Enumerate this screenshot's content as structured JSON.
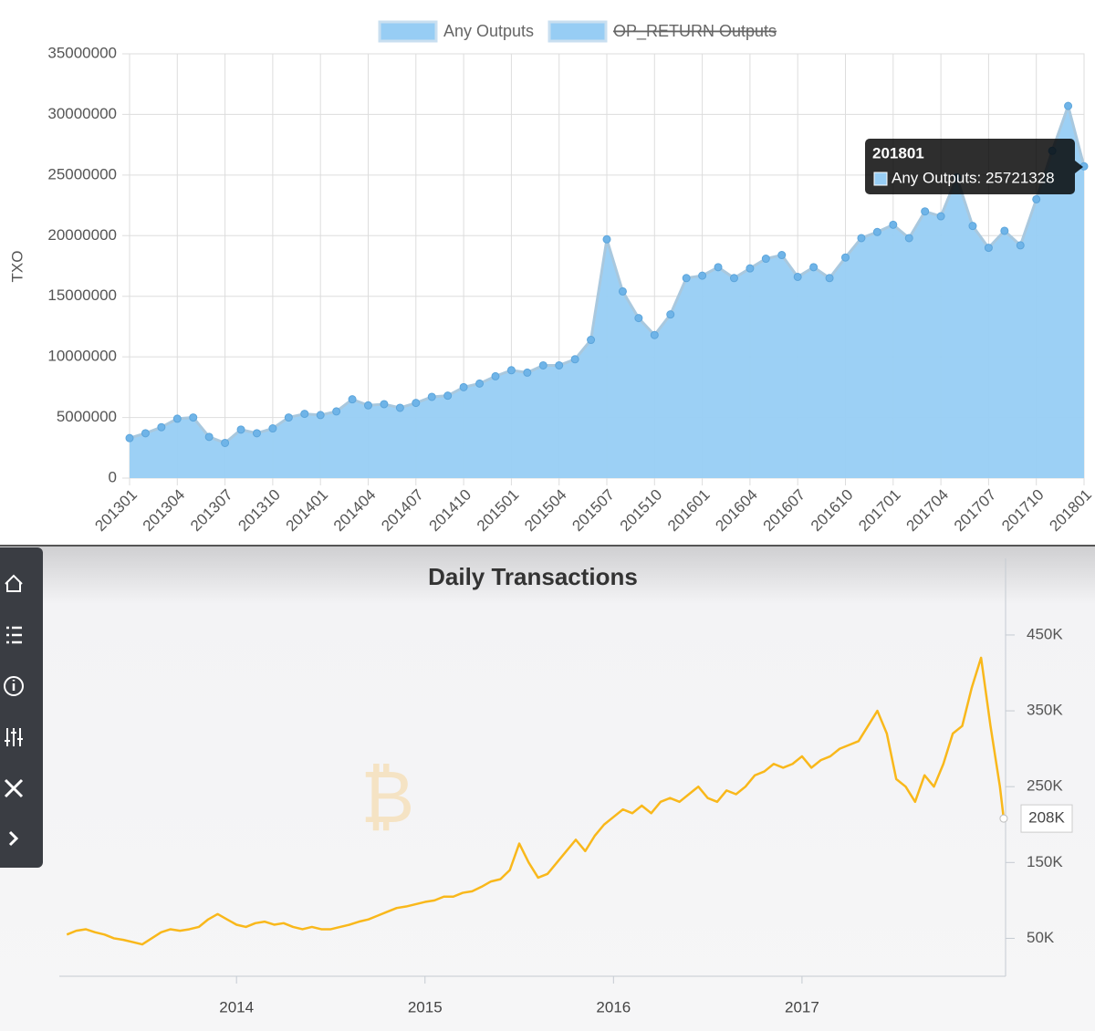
{
  "chart_data": [
    {
      "type": "area",
      "y_label": "TXO",
      "categories": [
        "201301",
        null,
        null,
        "201304",
        null,
        null,
        "201307",
        null,
        null,
        "201310",
        null,
        null,
        "201401",
        null,
        null,
        "201404",
        null,
        null,
        "201407",
        null,
        null,
        "201410",
        null,
        null,
        "201501",
        null,
        null,
        "201504",
        null,
        null,
        "201507",
        null,
        null,
        "201510",
        null,
        null,
        "201601",
        null,
        null,
        "201604",
        null,
        null,
        "201607",
        null,
        null,
        "201610",
        null,
        null,
        "201701",
        null,
        null,
        "201704",
        null,
        null,
        "201707",
        null,
        null,
        "201710",
        null,
        null,
        "201801"
      ],
      "series": [
        {
          "name": "Any Outputs",
          "color": "#97cdf4",
          "values": [
            3300000,
            3700000,
            4200000,
            4900000,
            5000000,
            3400000,
            2900000,
            4000000,
            3700000,
            4100000,
            5000000,
            5300000,
            5200000,
            5500000,
            6500000,
            6000000,
            6100000,
            5800000,
            6200000,
            6700000,
            6800000,
            7500000,
            7800000,
            8400000,
            8900000,
            8700000,
            9300000,
            9300000,
            9800000,
            11400000,
            19700000,
            15400000,
            13200000,
            11800000,
            13500000,
            16500000,
            16700000,
            17400000,
            16500000,
            17300000,
            18100000,
            18400000,
            16600000,
            17400000,
            16500000,
            18200000,
            19800000,
            20300000,
            20900000,
            19800000,
            22000000,
            21600000,
            24800000,
            20800000,
            19000000,
            20400000,
            19200000,
            23000000,
            27000000,
            30700000,
            25721328
          ]
        },
        {
          "name": "OP_RETURN Outputs",
          "color": "#97cdf4",
          "hidden": true
        }
      ],
      "ylim": [
        0,
        35000000
      ],
      "yticks": [
        0,
        5000000,
        10000000,
        15000000,
        20000000,
        25000000,
        30000000,
        35000000
      ],
      "grid": true,
      "tooltip": {
        "title": "201801",
        "label": "Any Outputs: 25721328"
      }
    },
    {
      "type": "line",
      "title": "Daily Transactions",
      "color": "#f9b81b",
      "x": [
        2013.1,
        2013.15,
        2013.2,
        2013.25,
        2013.3,
        2013.35,
        2013.4,
        2013.45,
        2013.5,
        2013.55,
        2013.6,
        2013.65,
        2013.7,
        2013.75,
        2013.8,
        2013.85,
        2013.9,
        2013.95,
        2014.0,
        2014.05,
        2014.1,
        2014.15,
        2014.2,
        2014.25,
        2014.3,
        2014.35,
        2014.4,
        2014.45,
        2014.5,
        2014.55,
        2014.6,
        2014.65,
        2014.7,
        2014.75,
        2014.8,
        2014.85,
        2014.9,
        2014.95,
        2015.0,
        2015.05,
        2015.1,
        2015.15,
        2015.2,
        2015.25,
        2015.3,
        2015.35,
        2015.4,
        2015.45,
        2015.5,
        2015.55,
        2015.6,
        2015.65,
        2015.7,
        2015.75,
        2015.8,
        2015.85,
        2015.9,
        2015.95,
        2016.0,
        2016.05,
        2016.1,
        2016.15,
        2016.2,
        2016.25,
        2016.3,
        2016.35,
        2016.4,
        2016.45,
        2016.5,
        2016.55,
        2016.6,
        2016.65,
        2016.7,
        2016.75,
        2016.8,
        2016.85,
        2016.9,
        2016.95,
        2017.0,
        2017.05,
        2017.1,
        2017.15,
        2017.2,
        2017.25,
        2017.3,
        2017.35,
        2017.4,
        2017.45,
        2017.5,
        2017.55,
        2017.6,
        2017.65,
        2017.7,
        2017.75,
        2017.8,
        2017.85,
        2017.9,
        2017.95,
        2018.0,
        2018.05,
        2018.07
      ],
      "values": [
        55000,
        60000,
        62000,
        58000,
        55000,
        50000,
        48000,
        45000,
        42000,
        50000,
        58000,
        62000,
        60000,
        62000,
        65000,
        75000,
        82000,
        75000,
        68000,
        65000,
        70000,
        72000,
        68000,
        70000,
        65000,
        62000,
        65000,
        62000,
        62000,
        65000,
        68000,
        72000,
        75000,
        80000,
        85000,
        90000,
        92000,
        95000,
        98000,
        100000,
        105000,
        105000,
        110000,
        112000,
        118000,
        125000,
        128000,
        140000,
        175000,
        150000,
        130000,
        135000,
        150000,
        165000,
        180000,
        165000,
        185000,
        200000,
        210000,
        220000,
        215000,
        225000,
        215000,
        230000,
        235000,
        230000,
        240000,
        250000,
        235000,
        230000,
        245000,
        240000,
        250000,
        265000,
        270000,
        280000,
        275000,
        280000,
        290000,
        275000,
        285000,
        290000,
        300000,
        305000,
        310000,
        330000,
        350000,
        320000,
        260000,
        250000,
        230000,
        265000,
        250000,
        280000,
        320000,
        330000,
        380000,
        420000,
        330000,
        250000,
        208000
      ],
      "value_labels": {
        "100": "208K"
      },
      "xlim": [
        2013.06,
        2018.08
      ],
      "xticks": [
        2014,
        2015,
        2016,
        2017
      ],
      "ylim": [
        0,
        551000
      ],
      "yticks": [
        {
          "value": 50000,
          "label": "50K"
        },
        {
          "value": 150000,
          "label": "150K"
        },
        {
          "value": 250000,
          "label": "250K"
        },
        {
          "value": 350000,
          "label": "350K"
        },
        {
          "value": 450000,
          "label": "450K"
        }
      ],
      "y_axis_side": "right"
    }
  ]
}
